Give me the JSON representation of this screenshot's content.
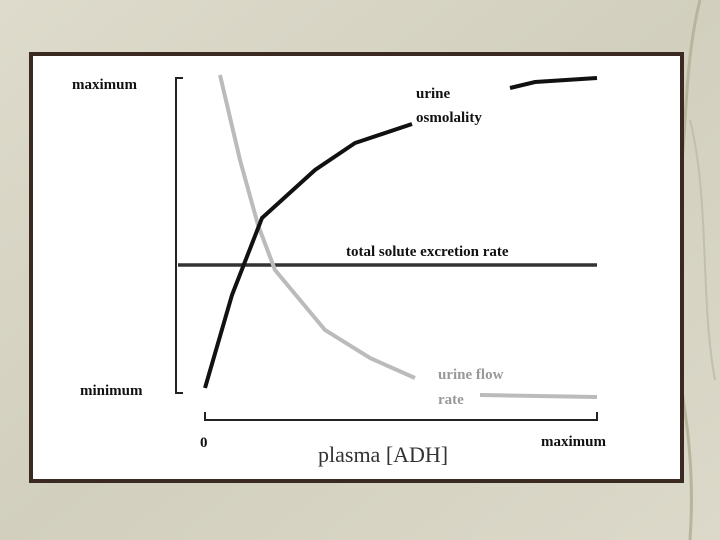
{
  "diagram": {
    "y_axis": {
      "top_label": "maximum",
      "bottom_label": "minimum"
    },
    "x_axis": {
      "start_label": "0",
      "end_label": "maximum",
      "title": "plasma [ADH]"
    },
    "curves": {
      "urine_osmolality": [
        "urine",
        "osmolality"
      ],
      "total_solute_excretion_rate": "total solute excretion rate",
      "urine_flow_rate": [
        "urine flow",
        "rate"
      ]
    }
  }
}
